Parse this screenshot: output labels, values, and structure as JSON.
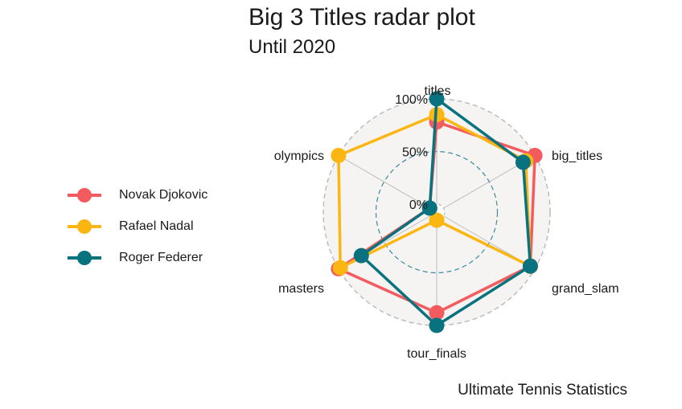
{
  "title": "Big 3 Titles radar plot",
  "subtitle": "Until 2020",
  "caption": "Ultimate Tennis Statistics",
  "colors": {
    "grid_outer": "#bdbdbd",
    "grid_mid": "#3b8aa0",
    "background": "#f5f4f2",
    "spoke": "#bdbdbd"
  },
  "chart_data": {
    "type": "radar",
    "axes": [
      "titles",
      "big_titles",
      "grand_slam",
      "tour_finals",
      "masters",
      "olympics"
    ],
    "grid_labels": [
      "0%",
      "50%",
      "100%"
    ],
    "grid_values": [
      0,
      0.5,
      1
    ],
    "range": [
      0,
      1
    ],
    "legend_position": "left",
    "series": [
      {
        "name": "Novak Djokovic",
        "color": "#f45b5f",
        "values": [
          0.78,
          1.0,
          0.95,
          0.88,
          1.0,
          0.0
        ]
      },
      {
        "name": "Rafael Nadal",
        "color": "#fbb611",
        "values": [
          0.85,
          0.9,
          0.95,
          0.0,
          0.98,
          1.0
        ]
      },
      {
        "name": "Roger Federer",
        "color": "#08727e",
        "values": [
          1.0,
          0.87,
          0.95,
          1.0,
          0.75,
          0.0
        ]
      }
    ]
  }
}
